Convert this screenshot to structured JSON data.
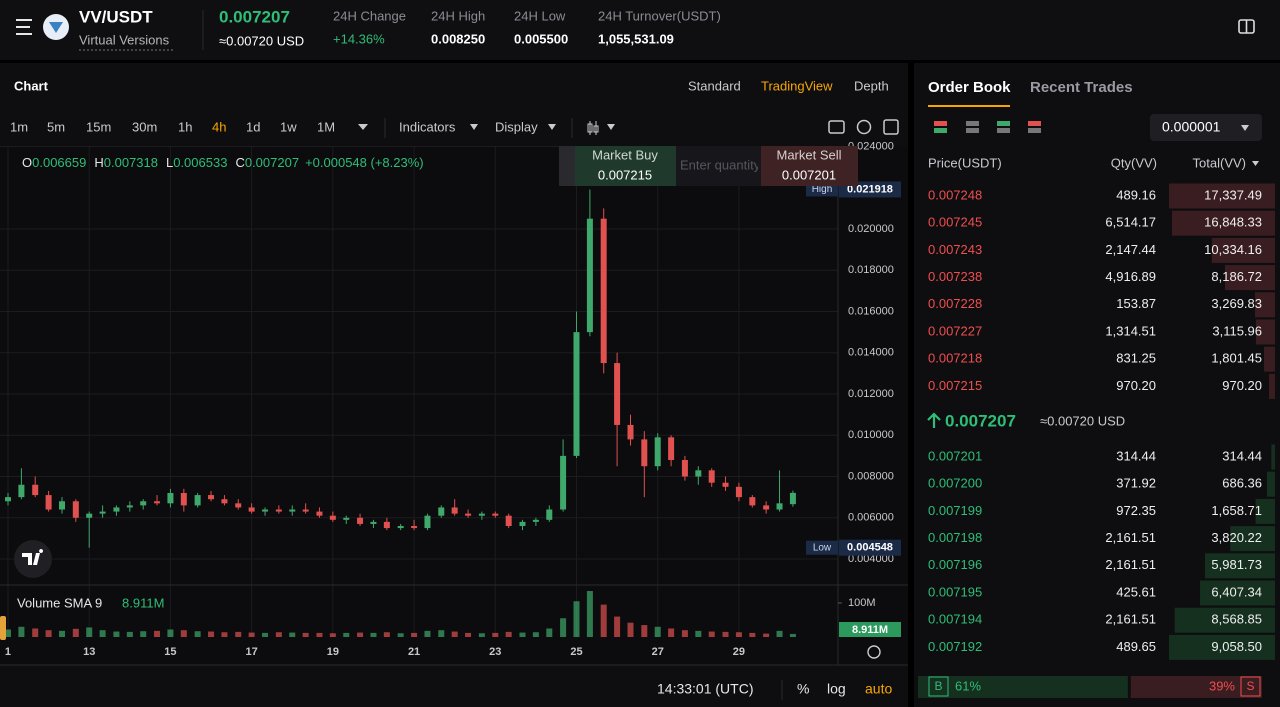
{
  "header": {
    "pair": "VV/USDT",
    "name": "Virtual Versions",
    "last_price": "0.007207",
    "last_price_usd": "≈0.00720 USD",
    "stats": [
      {
        "label": "24H Change",
        "value": "+14.36%"
      },
      {
        "label": "24H High",
        "value": "0.008250"
      },
      {
        "label": "24H Low",
        "value": "0.005500"
      },
      {
        "label": "24H Turnover(USDT)",
        "value": "1,055,531.09"
      }
    ]
  },
  "chart_panel": {
    "title": "Chart",
    "views": [
      "Standard",
      "TradingView",
      "Depth"
    ],
    "active_view": 1,
    "intervals": [
      "1m",
      "5m",
      "15m",
      "30m",
      "1h",
      "4h",
      "1d",
      "1w",
      "1M"
    ],
    "active_interval": 5,
    "menus": [
      "Indicators",
      "Display"
    ],
    "market_buy": {
      "label": "Market Buy",
      "price": "0.007215"
    },
    "quantity_placeholder": "Enter quantity",
    "market_sell": {
      "label": "Market Sell",
      "price": "0.007201"
    },
    "time": "14:33:01 (UTC)",
    "scale_options": [
      "%",
      "log",
      "auto"
    ]
  },
  "chart_data": {
    "type": "candlestick",
    "up_color": "#3fa86b",
    "down_color": "#e0514f",
    "grid": true,
    "legend_keys": [
      "O",
      "H",
      "L",
      "C"
    ],
    "change": "+0.000548 (+8.23%)",
    "high_label": "High",
    "high_index": 43,
    "low_label": "Low",
    "low_index": 6,
    "volume_title": "Volume SMA 9",
    "volume_sma": "8.911M",
    "x": [
      11,
      11.33,
      11.67,
      12,
      12.33,
      12.67,
      13,
      13.33,
      13.67,
      14,
      14.33,
      14.67,
      15,
      15.33,
      15.67,
      16,
      16.33,
      16.67,
      17,
      17.33,
      17.67,
      18,
      18.33,
      18.67,
      19,
      19.33,
      19.67,
      20,
      20.33,
      20.67,
      21,
      21.33,
      21.67,
      22,
      22.33,
      22.67,
      23,
      23.33,
      23.67,
      24,
      24.33,
      24.67,
      25,
      25.33,
      25.67,
      26,
      26.33,
      26.67,
      27,
      27.33,
      27.67,
      28,
      28.33,
      28.67,
      29,
      29.33,
      29.67,
      30,
      30.33
    ],
    "open": [
      0.0068,
      0.007,
      0.0076,
      0.0071,
      0.0064,
      0.0068,
      0.006,
      0.0062,
      0.0063,
      0.0065,
      0.0066,
      0.0068,
      0.0067,
      0.0072,
      0.0066,
      0.0071,
      0.0069,
      0.0067,
      0.0065,
      0.0063,
      0.0064,
      0.0063,
      0.0064,
      0.0063,
      0.0061,
      0.0059,
      0.006,
      0.0057,
      0.0058,
      0.0055,
      0.0056,
      0.0055,
      0.0061,
      0.0065,
      0.0062,
      0.0061,
      0.0062,
      0.0061,
      0.0056,
      0.0058,
      0.0059,
      0.0064,
      0.009,
      0.015,
      0.0205,
      0.0135,
      0.0105,
      0.0098,
      0.0085,
      0.0099,
      0.0088,
      0.008,
      0.0083,
      0.0077,
      0.0075,
      0.007,
      0.0066,
      0.0064,
      0.006659
    ],
    "high": [
      0.0072,
      0.0084,
      0.008,
      0.0073,
      0.007,
      0.0069,
      0.0063,
      0.0066,
      0.0066,
      0.0068,
      0.0069,
      0.0071,
      0.0074,
      0.0074,
      0.0072,
      0.0073,
      0.0071,
      0.0069,
      0.0067,
      0.0065,
      0.0066,
      0.0066,
      0.0067,
      0.0065,
      0.0063,
      0.0061,
      0.0062,
      0.0059,
      0.006,
      0.0057,
      0.0059,
      0.0062,
      0.0066,
      0.0069,
      0.0064,
      0.0063,
      0.0063,
      0.0062,
      0.0059,
      0.006,
      0.0066,
      0.0098,
      0.016,
      0.021918,
      0.021,
      0.014,
      0.011,
      0.0102,
      0.0101,
      0.01,
      0.009,
      0.0085,
      0.0084,
      0.008,
      0.0077,
      0.0071,
      0.0068,
      0.0083,
      0.007318
    ],
    "low": [
      0.0066,
      0.0069,
      0.007,
      0.0063,
      0.0062,
      0.0058,
      0.004548,
      0.006,
      0.0061,
      0.0063,
      0.0064,
      0.0066,
      0.0065,
      0.0063,
      0.0065,
      0.0068,
      0.0066,
      0.0064,
      0.0062,
      0.0061,
      0.0062,
      0.0061,
      0.0062,
      0.006,
      0.0058,
      0.0057,
      0.0056,
      0.0055,
      0.0054,
      0.0054,
      0.0054,
      0.0054,
      0.006,
      0.0061,
      0.006,
      0.0059,
      0.006,
      0.0055,
      0.0054,
      0.0056,
      0.0058,
      0.0063,
      0.0089,
      0.0148,
      0.013,
      0.0085,
      0.0095,
      0.007,
      0.0083,
      0.0085,
      0.0078,
      0.0076,
      0.0075,
      0.0073,
      0.0068,
      0.0065,
      0.0062,
      0.0063,
      0.006533
    ],
    "close": [
      0.007,
      0.0076,
      0.0071,
      0.0064,
      0.0068,
      0.006,
      0.0062,
      0.0063,
      0.0065,
      0.0066,
      0.0068,
      0.0067,
      0.0072,
      0.0066,
      0.0071,
      0.0069,
      0.0067,
      0.0065,
      0.0063,
      0.0064,
      0.0063,
      0.0064,
      0.0063,
      0.0061,
      0.0059,
      0.006,
      0.0057,
      0.0058,
      0.0055,
      0.0056,
      0.0055,
      0.0061,
      0.0065,
      0.0062,
      0.0061,
      0.0062,
      0.0061,
      0.0056,
      0.0058,
      0.0059,
      0.0064,
      0.009,
      0.015,
      0.0205,
      0.0135,
      0.0105,
      0.0098,
      0.0085,
      0.0099,
      0.0088,
      0.008,
      0.0083,
      0.0077,
      0.0075,
      0.007,
      0.0066,
      0.0064,
      0.0067,
      0.007207
    ],
    "volume": [
      22000000,
      30000000,
      25000000,
      20000000,
      18000000,
      24000000,
      28000000,
      20000000,
      16000000,
      15000000,
      17000000,
      18000000,
      22000000,
      20000000,
      17000000,
      16000000,
      14000000,
      15000000,
      13000000,
      12000000,
      14000000,
      13000000,
      12000000,
      12000000,
      11000000,
      12000000,
      13000000,
      12000000,
      14000000,
      11000000,
      12000000,
      18000000,
      20000000,
      16000000,
      12000000,
      11000000,
      12000000,
      15000000,
      13000000,
      14000000,
      25000000,
      55000000,
      105000000,
      135000000,
      95000000,
      60000000,
      42000000,
      35000000,
      30000000,
      25000000,
      20000000,
      18000000,
      16000000,
      15000000,
      14000000,
      12000000,
      10000000,
      18000000,
      9000000
    ],
    "xlim": [
      10.803,
      31.44
    ],
    "xticks": [
      {
        "value": 11,
        "label": "1"
      },
      13,
      15,
      17,
      19,
      21,
      23,
      25,
      27,
      29
    ],
    "ylim": [
      0.00274,
      0.024024
    ],
    "yticks": [
      {
        "value": 0.004,
        "label": "0.004000"
      },
      {
        "value": 0.006,
        "label": "0.006000"
      },
      {
        "value": 0.008,
        "label": "0.008000"
      },
      {
        "value": 0.01,
        "label": "0.010000"
      },
      {
        "value": 0.012,
        "label": "0.012000"
      },
      {
        "value": 0.014,
        "label": "0.014000"
      },
      {
        "value": 0.016,
        "label": "0.016000"
      },
      {
        "value": 0.018,
        "label": "0.018000"
      },
      {
        "value": 0.02,
        "label": "0.020000"
      },
      {
        "value": 0.024,
        "label": "0.024000"
      }
    ],
    "volume_ylim": [
      0,
      138000000
    ],
    "volume_yticks": [
      {
        "value": 100000000,
        "label": "100M"
      }
    ]
  },
  "order_book": {
    "tabs": [
      "Order Book",
      "Recent Trades"
    ],
    "precision": "0.000001",
    "columns": [
      "Price(USDT)",
      "Qty(VV)",
      "Total(VV)"
    ],
    "asks": [
      [
        "0.007248",
        "489.16",
        "17,337.49"
      ],
      [
        "0.007245",
        "6,514.17",
        "16,848.33"
      ],
      [
        "0.007243",
        "2,147.44",
        "10,334.16"
      ],
      [
        "0.007238",
        "4,916.89",
        "8,186.72"
      ],
      [
        "0.007228",
        "153.87",
        "3,269.83"
      ],
      [
        "0.007227",
        "1,314.51",
        "3,115.96"
      ],
      [
        "0.007218",
        "831.25",
        "1,801.45"
      ],
      [
        "0.007215",
        "970.20",
        "970.20"
      ]
    ],
    "mid": {
      "price": "0.007207",
      "usd": "≈0.00720 USD"
    },
    "bids": [
      [
        "0.007201",
        "314.44",
        "314.44"
      ],
      [
        "0.007200",
        "371.92",
        "686.36"
      ],
      [
        "0.007199",
        "972.35",
        "1,658.71"
      ],
      [
        "0.007198",
        "2,161.51",
        "3,820.22"
      ],
      [
        "0.007196",
        "2,161.51",
        "5,981.73"
      ],
      [
        "0.007195",
        "425.61",
        "6,407.34"
      ],
      [
        "0.007194",
        "2,161.51",
        "8,568.85"
      ],
      [
        "0.007192",
        "489.65",
        "9,058.50"
      ]
    ],
    "ratio": {
      "buy_key": "B",
      "buy": "61%",
      "sell": "39%",
      "sell_key": "S"
    }
  }
}
